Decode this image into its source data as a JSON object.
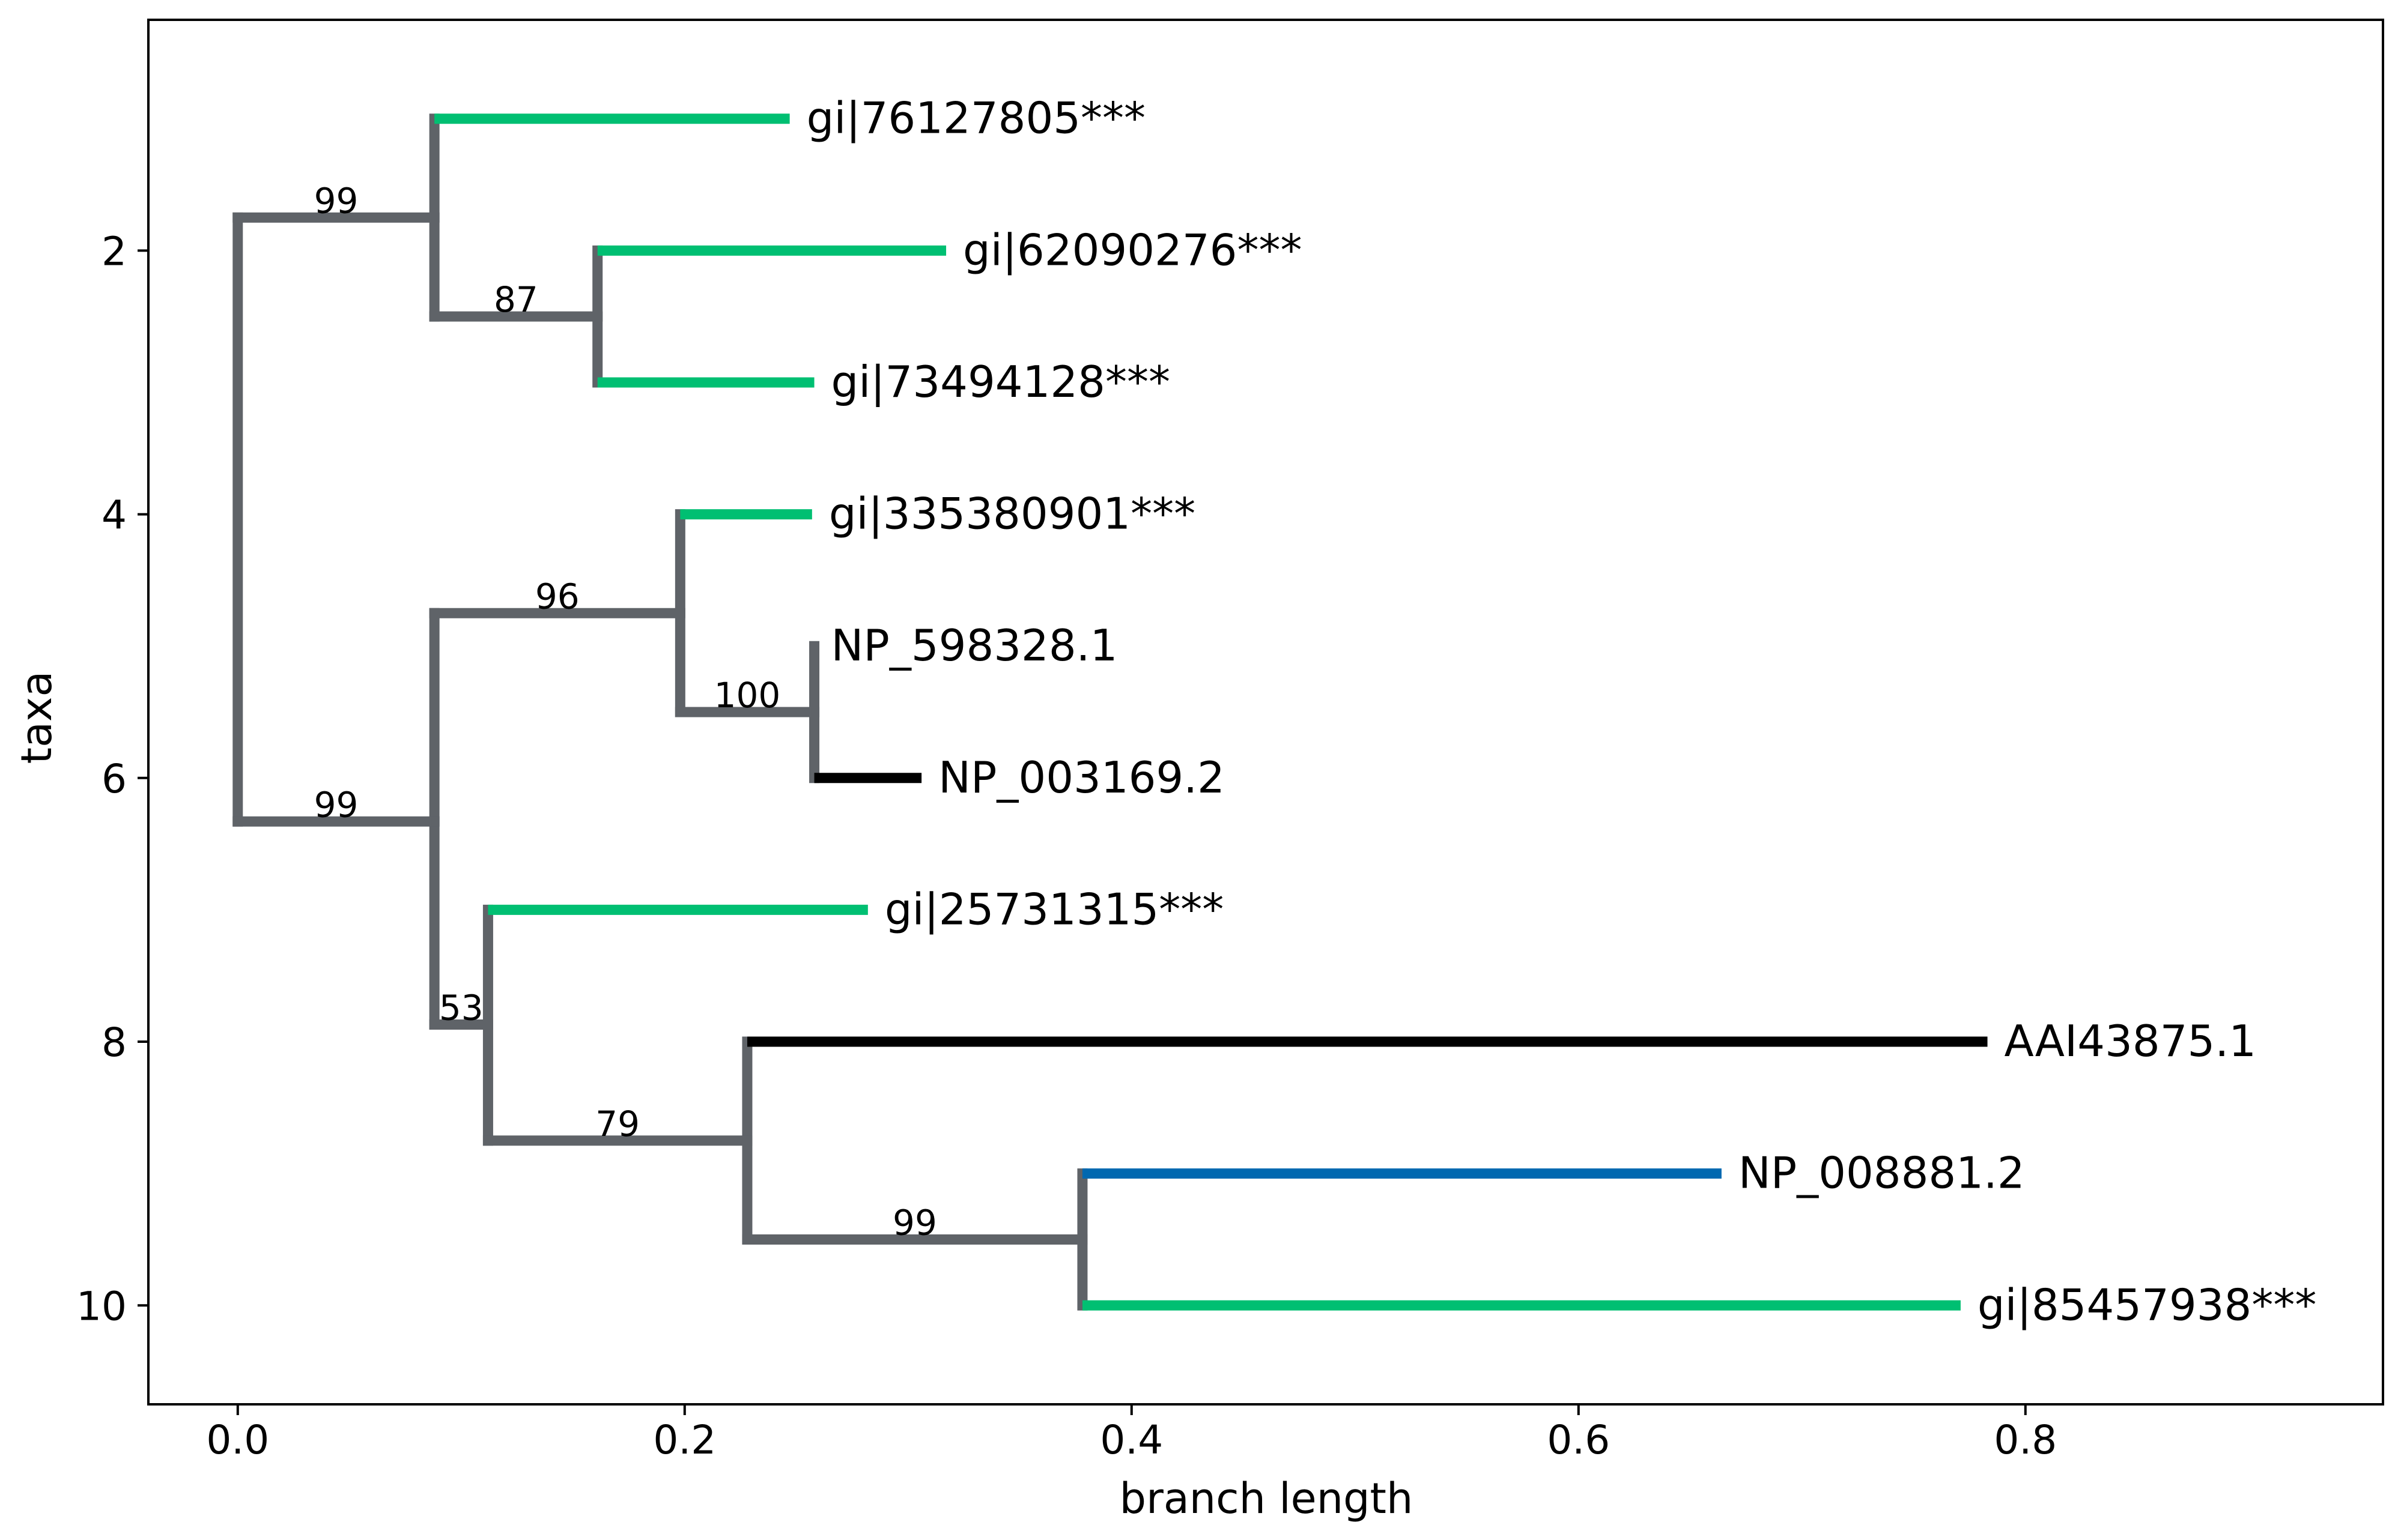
{
  "chart_data": {
    "type": "phylogenetic-tree",
    "xlabel": "branch length",
    "ylabel": "taxa",
    "xlim": [
      -0.04,
      0.96
    ],
    "ylim": [
      10.75,
      0.25
    ],
    "xticks": [
      {
        "value": 0.0,
        "label": "0.0"
      },
      {
        "value": 0.2,
        "label": "0.2"
      },
      {
        "value": 0.4,
        "label": "0.4"
      },
      {
        "value": 0.6,
        "label": "0.6"
      },
      {
        "value": 0.8,
        "label": "0.8"
      }
    ],
    "yticks": [
      {
        "value": 2,
        "label": "2"
      },
      {
        "value": 4,
        "label": "4"
      },
      {
        "value": 6,
        "label": "6"
      },
      {
        "value": 8,
        "label": "8"
      },
      {
        "value": 10,
        "label": "10"
      }
    ],
    "colors": {
      "internal": "#5f6368",
      "green": "#00bf72",
      "black": "#000000",
      "blue": "#0068b0"
    },
    "leaves": [
      {
        "name": "gi|76127805***",
        "y": 1,
        "x_start": 0.088,
        "x_end": 0.247,
        "color": "green"
      },
      {
        "name": "gi|62090276***",
        "y": 2,
        "x_start": 0.161,
        "x_end": 0.317,
        "color": "green"
      },
      {
        "name": "gi|73494128***",
        "y": 3,
        "x_start": 0.161,
        "x_end": 0.258,
        "color": "green"
      },
      {
        "name": "gi|335380901***",
        "y": 4,
        "x_start": 0.198,
        "x_end": 0.257,
        "color": "green"
      },
      {
        "name": "NP_598328.1",
        "y": 5,
        "x_start": 0.258,
        "x_end": 0.258,
        "color": "internal"
      },
      {
        "name": "NP_003169.2",
        "y": 6,
        "x_start": 0.258,
        "x_end": 0.306,
        "color": "black"
      },
      {
        "name": "gi|25731315***",
        "y": 7,
        "x_start": 0.112,
        "x_end": 0.282,
        "color": "green"
      },
      {
        "name": "AAI43875.1",
        "y": 8,
        "x_start": 0.228,
        "x_end": 0.783,
        "color": "black"
      },
      {
        "name": "NP_008881.2",
        "y": 9,
        "x_start": 0.378,
        "x_end": 0.664,
        "color": "blue"
      },
      {
        "name": "gi|85457938***",
        "y": 10,
        "x_start": 0.378,
        "x_end": 0.771,
        "color": "green"
      }
    ],
    "clades": [
      {
        "x": 0.0,
        "y_top": 1.75,
        "y_bottom": 6.33,
        "parent_x": null,
        "y": null,
        "support": ""
      },
      {
        "x": 0.088,
        "y_top": 1.0,
        "y_bottom": 2.5,
        "parent_x": 0.0,
        "y": 1.75,
        "support": "99"
      },
      {
        "x": 0.161,
        "y_top": 2.0,
        "y_bottom": 3.0,
        "parent_x": 0.088,
        "y": 2.5,
        "support": "87"
      },
      {
        "x": 0.088,
        "y_top": 4.75,
        "y_bottom": 7.87,
        "parent_x": 0.0,
        "y": 6.33,
        "support": "99"
      },
      {
        "x": 0.198,
        "y_top": 4.0,
        "y_bottom": 5.5,
        "parent_x": 0.088,
        "y": 4.75,
        "support": "96"
      },
      {
        "x": 0.258,
        "y_top": 5.0,
        "y_bottom": 6.0,
        "parent_x": 0.198,
        "y": 5.5,
        "support": "100"
      },
      {
        "x": 0.112,
        "y_top": 7.0,
        "y_bottom": 8.75,
        "parent_x": 0.088,
        "y": 7.87,
        "support": "53"
      },
      {
        "x": 0.228,
        "y_top": 8.0,
        "y_bottom": 9.5,
        "parent_x": 0.112,
        "y": 8.75,
        "support": "79"
      },
      {
        "x": 0.378,
        "y_top": 9.0,
        "y_bottom": 10.0,
        "parent_x": 0.228,
        "y": 9.5,
        "support": "99"
      }
    ]
  }
}
